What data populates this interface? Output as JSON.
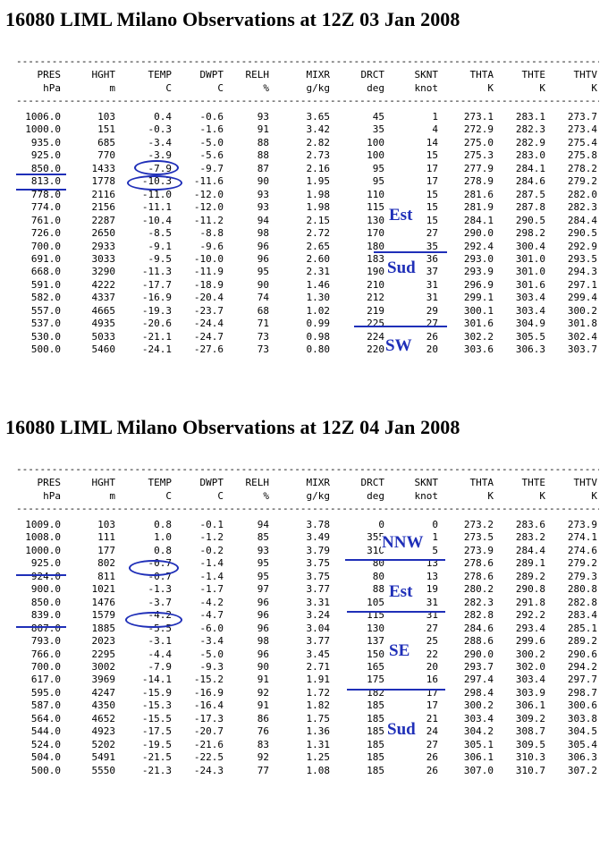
{
  "columns": [
    {
      "name": "PRES",
      "unit": "hPa"
    },
    {
      "name": "HGHT",
      "unit": "m"
    },
    {
      "name": "TEMP",
      "unit": "C"
    },
    {
      "name": "DWPT",
      "unit": "C"
    },
    {
      "name": "RELH",
      "unit": "%"
    },
    {
      "name": "MIXR",
      "unit": "g/kg"
    },
    {
      "name": "DRCT",
      "unit": "deg"
    },
    {
      "name": "SKNT",
      "unit": "knot"
    },
    {
      "name": "THTA",
      "unit": "K"
    },
    {
      "name": "THTE",
      "unit": "K"
    },
    {
      "name": "THTV",
      "unit": "K"
    }
  ],
  "rule_text": "-----------------------------------------------------------------------------------------------------------",
  "soundings": [
    {
      "title": "16080 LIML Milano Observations at 12Z 03 Jan 2008",
      "rows": [
        [
          "1006.0",
          "103",
          "0.4",
          "-0.6",
          "93",
          "3.65",
          "45",
          "1",
          "273.1",
          "283.1",
          "273.7"
        ],
        [
          "1000.0",
          "151",
          "-0.3",
          "-1.6",
          "91",
          "3.42",
          "35",
          "4",
          "272.9",
          "282.3",
          "273.4"
        ],
        [
          "935.0",
          "685",
          "-3.4",
          "-5.0",
          "88",
          "2.82",
          "100",
          "14",
          "275.0",
          "282.9",
          "275.4"
        ],
        [
          "925.0",
          "770",
          "-3.9",
          "-5.6",
          "88",
          "2.73",
          "100",
          "15",
          "275.3",
          "283.0",
          "275.8"
        ],
        [
          "850.0",
          "1433",
          "-7.9",
          "-9.7",
          "87",
          "2.16",
          "95",
          "17",
          "277.9",
          "284.1",
          "278.2"
        ],
        [
          "813.0",
          "1778",
          "-10.3",
          "-11.6",
          "90",
          "1.95",
          "95",
          "17",
          "278.9",
          "284.6",
          "279.2"
        ],
        [
          "778.0",
          "2116",
          "-11.0",
          "-12.0",
          "93",
          "1.98",
          "110",
          "15",
          "281.6",
          "287.5",
          "282.0"
        ],
        [
          "774.0",
          "2156",
          "-11.1",
          "-12.0",
          "93",
          "1.98",
          "115",
          "15",
          "281.9",
          "287.8",
          "282.3"
        ],
        [
          "761.0",
          "2287",
          "-10.4",
          "-11.2",
          "94",
          "2.15",
          "130",
          "15",
          "284.1",
          "290.5",
          "284.4"
        ],
        [
          "726.0",
          "2650",
          "-8.5",
          "-8.8",
          "98",
          "2.72",
          "170",
          "27",
          "290.0",
          "298.2",
          "290.5"
        ],
        [
          "700.0",
          "2933",
          "-9.1",
          "-9.6",
          "96",
          "2.65",
          "180",
          "35",
          "292.4",
          "300.4",
          "292.9"
        ],
        [
          "691.0",
          "3033",
          "-9.5",
          "-10.0",
          "96",
          "2.60",
          "183",
          "36",
          "293.0",
          "301.0",
          "293.5"
        ],
        [
          "668.0",
          "3290",
          "-11.3",
          "-11.9",
          "95",
          "2.31",
          "190",
          "37",
          "293.9",
          "301.0",
          "294.3"
        ],
        [
          "591.0",
          "4222",
          "-17.7",
          "-18.9",
          "90",
          "1.46",
          "210",
          "31",
          "296.9",
          "301.6",
          "297.1"
        ],
        [
          "582.0",
          "4337",
          "-16.9",
          "-20.4",
          "74",
          "1.30",
          "212",
          "31",
          "299.1",
          "303.4",
          "299.4"
        ],
        [
          "557.0",
          "4665",
          "-19.3",
          "-23.7",
          "68",
          "1.02",
          "219",
          "29",
          "300.1",
          "303.4",
          "300.2"
        ],
        [
          "537.0",
          "4935",
          "-20.6",
          "-24.4",
          "71",
          "0.99",
          "225",
          "27",
          "301.6",
          "304.9",
          "301.8"
        ],
        [
          "530.0",
          "5033",
          "-21.1",
          "-24.7",
          "73",
          "0.98",
          "224",
          "26",
          "302.2",
          "305.5",
          "302.4"
        ],
        [
          "500.0",
          "5460",
          "-24.1",
          "-27.6",
          "73",
          "0.80",
          "220",
          "20",
          "303.6",
          "306.3",
          "303.7"
        ]
      ],
      "annotations": [
        "Est",
        "Sud",
        "SW"
      ]
    },
    {
      "title": "16080 LIML Milano Observations at 12Z 04 Jan 2008",
      "rows": [
        [
          "1009.0",
          "103",
          "0.8",
          "-0.1",
          "94",
          "3.78",
          "0",
          "0",
          "273.2",
          "283.6",
          "273.9"
        ],
        [
          "1008.0",
          "111",
          "1.0",
          "-1.2",
          "85",
          "3.49",
          "355",
          "1",
          "273.5",
          "283.2",
          "274.1"
        ],
        [
          "1000.0",
          "177",
          "0.8",
          "-0.2",
          "93",
          "3.79",
          "310",
          "5",
          "273.9",
          "284.4",
          "274.6"
        ],
        [
          "925.0",
          "802",
          "-0.7",
          "-1.4",
          "95",
          "3.75",
          "80",
          "13",
          "278.6",
          "289.1",
          "279.2"
        ],
        [
          "924.0",
          "811",
          "-0.7",
          "-1.4",
          "95",
          "3.75",
          "80",
          "13",
          "278.6",
          "289.2",
          "279.3"
        ],
        [
          "900.0",
          "1021",
          "-1.3",
          "-1.7",
          "97",
          "3.77",
          "88",
          "19",
          "280.2",
          "290.8",
          "280.8"
        ],
        [
          "850.0",
          "1476",
          "-3.7",
          "-4.2",
          "96",
          "3.31",
          "105",
          "31",
          "282.3",
          "291.8",
          "282.8"
        ],
        [
          "839.0",
          "1579",
          "-4.2",
          "-4.7",
          "96",
          "3.24",
          "115",
          "31",
          "282.8",
          "292.2",
          "283.4"
        ],
        [
          "807.0",
          "1885",
          "-5.5",
          "-6.0",
          "96",
          "3.04",
          "130",
          "27",
          "284.6",
          "293.4",
          "285.1"
        ],
        [
          "793.0",
          "2023",
          "-3.1",
          "-3.4",
          "98",
          "3.77",
          "137",
          "25",
          "288.6",
          "299.6",
          "289.2"
        ],
        [
          "766.0",
          "2295",
          "-4.4",
          "-5.0",
          "96",
          "3.45",
          "150",
          "22",
          "290.0",
          "300.2",
          "290.6"
        ],
        [
          "700.0",
          "3002",
          "-7.9",
          "-9.3",
          "90",
          "2.71",
          "165",
          "20",
          "293.7",
          "302.0",
          "294.2"
        ],
        [
          "617.0",
          "3969",
          "-14.1",
          "-15.2",
          "91",
          "1.91",
          "175",
          "16",
          "297.4",
          "303.4",
          "297.7"
        ],
        [
          "595.0",
          "4247",
          "-15.9",
          "-16.9",
          "92",
          "1.72",
          "182",
          "17",
          "298.4",
          "303.9",
          "298.7"
        ],
        [
          "587.0",
          "4350",
          "-15.3",
          "-16.4",
          "91",
          "1.82",
          "185",
          "17",
          "300.2",
          "306.1",
          "300.6"
        ],
        [
          "564.0",
          "4652",
          "-15.5",
          "-17.3",
          "86",
          "1.75",
          "185",
          "21",
          "303.4",
          "309.2",
          "303.8"
        ],
        [
          "544.0",
          "4923",
          "-17.5",
          "-20.7",
          "76",
          "1.36",
          "185",
          "24",
          "304.2",
          "308.7",
          "304.5"
        ],
        [
          "524.0",
          "5202",
          "-19.5",
          "-21.6",
          "83",
          "1.31",
          "185",
          "27",
          "305.1",
          "309.5",
          "305.4"
        ],
        [
          "504.0",
          "5491",
          "-21.5",
          "-22.5",
          "92",
          "1.25",
          "185",
          "26",
          "306.1",
          "310.3",
          "306.3"
        ],
        [
          "500.0",
          "5550",
          "-21.3",
          "-24.3",
          "77",
          "1.08",
          "185",
          "26",
          "307.0",
          "310.7",
          "307.2"
        ]
      ],
      "annotations": [
        "NNW",
        "Est",
        "SE",
        "Sud"
      ]
    }
  ]
}
